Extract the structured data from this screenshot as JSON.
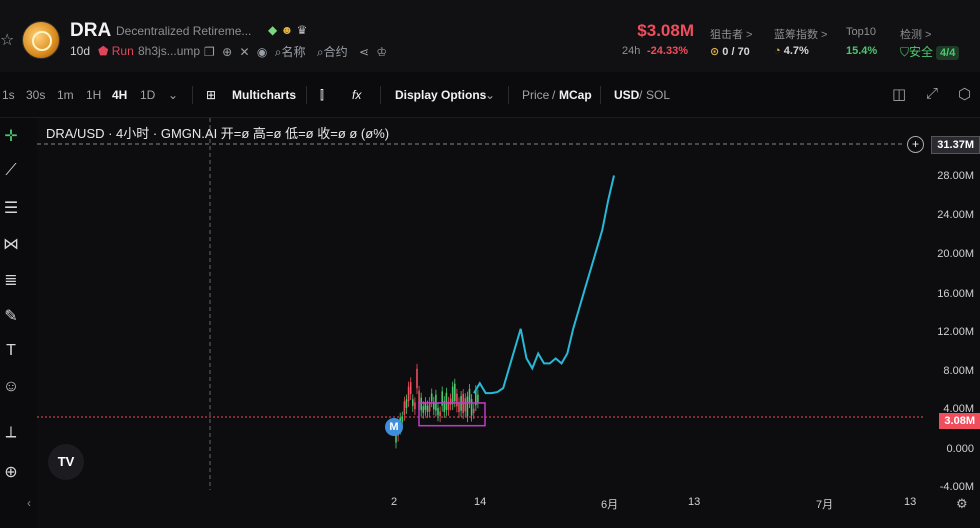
{
  "header": {
    "symbol": "DRA",
    "full_name": "Decentralized Retireme...",
    "age": "10d",
    "run_label": "Run",
    "address": "8h3js...ump",
    "search_name_label": "名称",
    "search_contract_label": "合约",
    "price": "$3.08M",
    "change_label": "24h",
    "change_value": "-24.33%",
    "stats": [
      {
        "label": "狙击者 >",
        "value": "0 / 70",
        "color": "#d6d6d6"
      },
      {
        "label": "蓝筹指数 >",
        "value": "4.7%",
        "color": "#d6d6d6"
      },
      {
        "label": "Top10",
        "value": "15.4%",
        "color": "#4cc76e"
      },
      {
        "label": "检测 >",
        "value": "安全",
        "badge": "4/4",
        "color": "#4cc76e"
      }
    ]
  },
  "toolbar": {
    "intervals": [
      "1s",
      "30s",
      "1m",
      "1H",
      "4H",
      "1D"
    ],
    "active_interval": "4H",
    "multicharts": "Multicharts",
    "display_options": "Display Options",
    "price_label": "Price",
    "mcap_label": "MCap",
    "usd_label": "USD",
    "sol_label": "SOL"
  },
  "chart": {
    "legend": "DRA/USD · 4小时 · GMGN.AI  开=ø 高=ø 低=ø 收=ø ø (ø%)",
    "crosshair_value": "31.37M",
    "current_value": "3.08M",
    "y_ticks": [
      "28.00M",
      "24.00M",
      "20.00M",
      "16.00M",
      "12.00M",
      "8.00M",
      "4.00M",
      "0.000",
      "-4.00M"
    ],
    "x_ticks": [
      "2",
      "14",
      "6月",
      "13",
      "7月",
      "13"
    ],
    "marker_label": "M",
    "logo_text": "TV"
  },
  "chart_data": {
    "type": "line",
    "title": "",
    "xlabel": "",
    "ylabel": "",
    "ylim": [
      -4,
      32
    ],
    "series": [
      {
        "values": [
          5.5,
          6.5,
          5.5,
          5.5,
          5.6,
          6.0,
          8.0,
          10.0,
          12.0,
          9.0,
          8.0,
          9.5,
          8.5,
          8.5,
          9.0,
          8.5,
          9.5,
          12.0,
          14.0,
          16.0,
          18.0,
          20.0,
          22.0,
          25.0,
          27.5
        ]
      }
    ],
    "candles_range": [
      0,
      7.5
    ],
    "current_value": 3.08
  },
  "colors": {
    "up": "#4cc76e",
    "down": "#f04d5d",
    "line": "#27b9d6",
    "box": "#c43ac7"
  }
}
